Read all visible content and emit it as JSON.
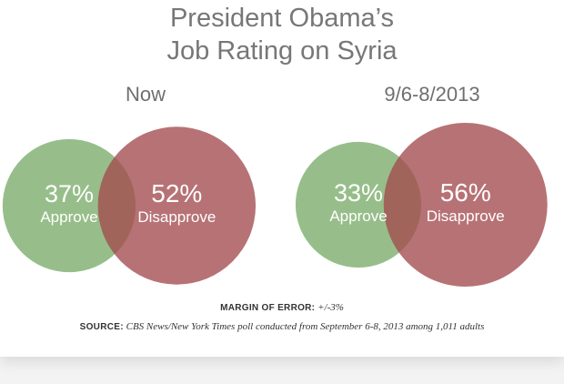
{
  "title_lines": [
    "President Obama’s",
    "Job Rating on Syria"
  ],
  "margin_of_error": {
    "label": "MARGIN OF ERROR:",
    "value": "+/-3%"
  },
  "source": {
    "label": "SOURCE:",
    "value": "CBS News/New York Times poll conducted from September 6-8, 2013 among 1,011 adults"
  },
  "colors": {
    "approve": "#7aac69",
    "disapprove": "#a34a4e",
    "text_on_circle": "#ffffff",
    "label_text": "#6f6f6f"
  },
  "chart_data": [
    {
      "type": "bubble",
      "panel_label": "Now",
      "series": [
        {
          "name": "Approve",
          "value": 37,
          "display": "37%"
        },
        {
          "name": "Disapprove",
          "value": 52,
          "display": "52%"
        }
      ]
    },
    {
      "type": "bubble",
      "panel_label": "9/6-8/2013",
      "series": [
        {
          "name": "Approve",
          "value": 33,
          "display": "33%"
        },
        {
          "name": "Disapprove",
          "value": 56,
          "display": "56%"
        }
      ]
    }
  ]
}
